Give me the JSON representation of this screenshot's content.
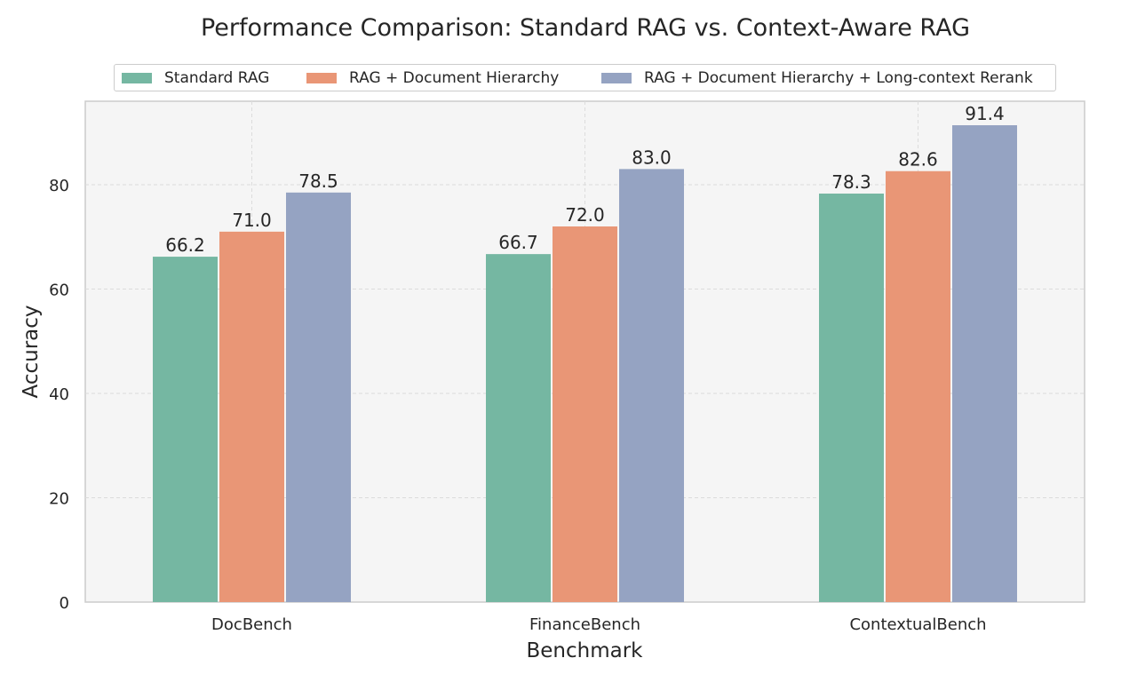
{
  "chart_data": {
    "type": "bar",
    "title": "Performance Comparison: Standard RAG vs. Context-Aware RAG",
    "xlabel": "Benchmark",
    "ylabel": "Accuracy",
    "categories": [
      "DocBench",
      "FinanceBench",
      "ContextualBench"
    ],
    "series": [
      {
        "name": "Standard RAG",
        "color": "#75b7a2",
        "values": [
          66.2,
          66.7,
          78.3
        ],
        "labels": [
          "66.2",
          "66.7",
          "78.3"
        ]
      },
      {
        "name": "RAG + Document Hierarchy",
        "color": "#e99676",
        "values": [
          71.0,
          72.0,
          82.6
        ],
        "labels": [
          "71.0",
          "72.0",
          "82.6"
        ]
      },
      {
        "name": "RAG + Document Hierarchy + Long-context Rerank",
        "color": "#95a3c2",
        "values": [
          78.5,
          83.0,
          91.4
        ],
        "labels": [
          "78.5",
          "83.0",
          "91.4"
        ]
      }
    ],
    "yticks": [
      "0",
      "20",
      "40",
      "60",
      "80"
    ],
    "ylim": [
      0,
      96
    ],
    "grid": true,
    "legend_position": "top-center"
  }
}
